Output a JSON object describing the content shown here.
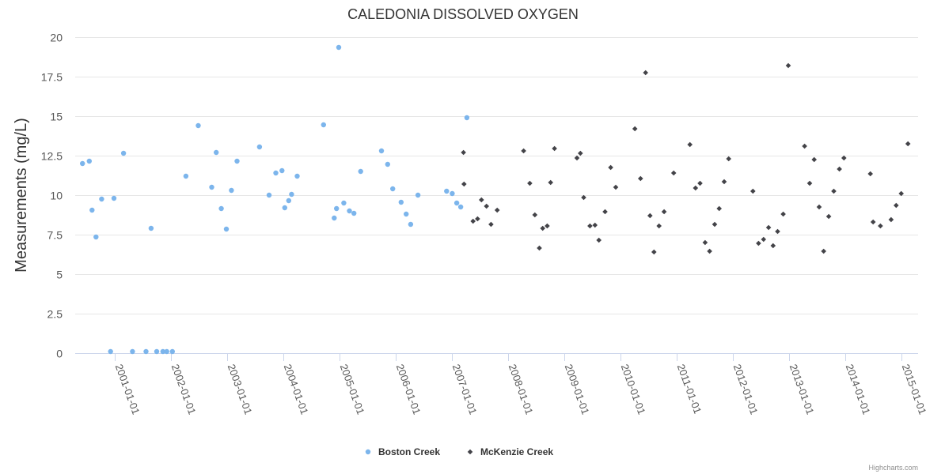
{
  "chart_data": {
    "type": "scatter",
    "title": "CALEDONIA DISSOLVED OXYGEN",
    "ylabel": "Measurements (mg/L)",
    "xlabel": "",
    "ylim": [
      0,
      20
    ],
    "yticks": [
      "0",
      "2.5",
      "5",
      "7.5",
      "10",
      "12.5",
      "15",
      "17.5",
      "20"
    ],
    "ytick_values": [
      0,
      2.5,
      5,
      7.5,
      10,
      12.5,
      15,
      17.5,
      20
    ],
    "xlim": [
      2000.3,
      2015.3
    ],
    "xticks": [
      "2001-01-01",
      "2002-01-01",
      "2003-01-01",
      "2004-01-01",
      "2005-01-01",
      "2006-01-01",
      "2007-01-01",
      "2008-01-01",
      "2009-01-01",
      "2010-01-01",
      "2011-01-01",
      "2012-01-01",
      "2013-01-01",
      "2014-01-01",
      "2015-01-01"
    ],
    "xtick_values": [
      2001,
      2002,
      2003,
      2004,
      2005,
      2006,
      2007,
      2008,
      2009,
      2010,
      2011,
      2012,
      2013,
      2014,
      2015
    ],
    "credit": "Highcharts.com",
    "series": [
      {
        "name": "Boston Creek",
        "color": "#7cb5ec",
        "marker": "circle",
        "points": [
          [
            2000.43,
            12.0
          ],
          [
            2000.55,
            12.15
          ],
          [
            2000.6,
            9.05
          ],
          [
            2000.67,
            7.35
          ],
          [
            2000.77,
            9.75
          ],
          [
            2000.93,
            0.1
          ],
          [
            2000.99,
            9.8
          ],
          [
            2001.16,
            12.65
          ],
          [
            2001.32,
            0.1
          ],
          [
            2001.56,
            0.1
          ],
          [
            2001.65,
            7.9
          ],
          [
            2001.75,
            0.1
          ],
          [
            2001.86,
            0.1
          ],
          [
            2001.93,
            0.1
          ],
          [
            2002.03,
            0.1
          ],
          [
            2002.27,
            11.2
          ],
          [
            2002.49,
            14.4
          ],
          [
            2002.73,
            10.5
          ],
          [
            2002.81,
            12.7
          ],
          [
            2002.9,
            9.15
          ],
          [
            2002.99,
            7.85
          ],
          [
            2003.08,
            10.3
          ],
          [
            2003.18,
            12.15
          ],
          [
            2003.58,
            13.05
          ],
          [
            2003.75,
            10.0
          ],
          [
            2003.87,
            11.4
          ],
          [
            2003.98,
            11.55
          ],
          [
            2004.03,
            9.2
          ],
          [
            2004.1,
            9.65
          ],
          [
            2004.15,
            10.05
          ],
          [
            2004.25,
            11.2
          ],
          [
            2004.72,
            14.45
          ],
          [
            2004.91,
            8.55
          ],
          [
            2004.95,
            9.15
          ],
          [
            2004.99,
            19.35
          ],
          [
            2005.08,
            9.5
          ],
          [
            2005.18,
            9.0
          ],
          [
            2005.26,
            8.85
          ],
          [
            2005.38,
            11.5
          ],
          [
            2005.75,
            12.8
          ],
          [
            2005.86,
            11.95
          ],
          [
            2005.95,
            10.4
          ],
          [
            2006.1,
            9.55
          ],
          [
            2006.19,
            8.8
          ],
          [
            2006.27,
            8.15
          ],
          [
            2006.4,
            10.0
          ],
          [
            2006.91,
            10.25
          ],
          [
            2007.01,
            10.1
          ],
          [
            2007.09,
            9.5
          ],
          [
            2007.16,
            9.25
          ],
          [
            2007.27,
            14.9
          ]
        ]
      },
      {
        "name": "McKenzie Creek",
        "color": "#434348",
        "marker": "diamond",
        "points": [
          [
            2007.21,
            12.7
          ],
          [
            2007.22,
            10.7
          ],
          [
            2007.38,
            8.35
          ],
          [
            2007.46,
            8.5
          ],
          [
            2007.53,
            9.7
          ],
          [
            2007.62,
            9.3
          ],
          [
            2007.7,
            8.15
          ],
          [
            2007.81,
            9.05
          ],
          [
            2008.28,
            12.8
          ],
          [
            2008.39,
            10.75
          ],
          [
            2008.48,
            8.75
          ],
          [
            2008.56,
            6.65
          ],
          [
            2008.62,
            7.9
          ],
          [
            2008.7,
            8.05
          ],
          [
            2008.76,
            10.8
          ],
          [
            2008.83,
            12.95
          ],
          [
            2009.23,
            12.35
          ],
          [
            2009.29,
            12.65
          ],
          [
            2009.35,
            9.85
          ],
          [
            2009.46,
            8.05
          ],
          [
            2009.55,
            8.1
          ],
          [
            2009.62,
            7.15
          ],
          [
            2009.73,
            8.95
          ],
          [
            2009.83,
            11.75
          ],
          [
            2009.92,
            10.5
          ],
          [
            2010.26,
            14.2
          ],
          [
            2010.36,
            11.05
          ],
          [
            2010.45,
            17.75
          ],
          [
            2010.53,
            8.7
          ],
          [
            2010.6,
            6.4
          ],
          [
            2010.69,
            8.05
          ],
          [
            2010.78,
            8.95
          ],
          [
            2010.95,
            11.4
          ],
          [
            2011.24,
            13.2
          ],
          [
            2011.34,
            10.45
          ],
          [
            2011.42,
            10.75
          ],
          [
            2011.51,
            7.0
          ],
          [
            2011.59,
            6.45
          ],
          [
            2011.68,
            8.15
          ],
          [
            2011.76,
            9.15
          ],
          [
            2011.85,
            10.85
          ],
          [
            2011.93,
            12.3
          ],
          [
            2012.36,
            10.25
          ],
          [
            2012.46,
            6.95
          ],
          [
            2012.55,
            7.2
          ],
          [
            2012.64,
            7.95
          ],
          [
            2012.72,
            6.8
          ],
          [
            2012.8,
            7.7
          ],
          [
            2012.9,
            8.8
          ],
          [
            2012.99,
            18.2
          ],
          [
            2013.28,
            13.1
          ],
          [
            2013.37,
            10.75
          ],
          [
            2013.45,
            12.25
          ],
          [
            2013.54,
            9.25
          ],
          [
            2013.62,
            6.45
          ],
          [
            2013.71,
            8.65
          ],
          [
            2013.8,
            10.25
          ],
          [
            2013.9,
            11.65
          ],
          [
            2013.98,
            12.35
          ],
          [
            2014.45,
            11.35
          ],
          [
            2014.5,
            8.3
          ],
          [
            2014.63,
            8.05
          ],
          [
            2014.82,
            8.45
          ],
          [
            2014.91,
            9.35
          ],
          [
            2015.0,
            10.1
          ],
          [
            2015.12,
            13.25
          ]
        ]
      }
    ]
  }
}
